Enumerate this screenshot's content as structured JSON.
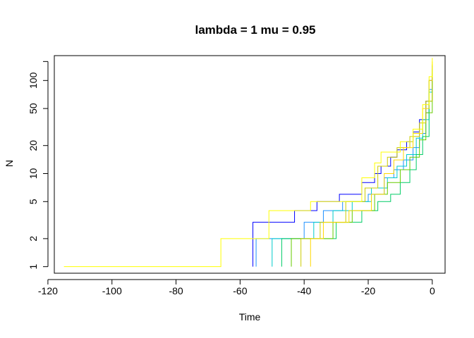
{
  "chart_data": {
    "type": "line",
    "title": "lambda = 1 mu = 0.95",
    "xlabel": "Time",
    "ylabel": "N",
    "xlim": [
      -118,
      4
    ],
    "ylim": [
      0.85,
      185
    ],
    "y_scale": "log",
    "x_ticks": [
      -120,
      -100,
      -80,
      -60,
      -40,
      -20,
      0
    ],
    "x_tick_labels": [
      "-120",
      "-100",
      "-80",
      "-60",
      "-40",
      "-20",
      "0"
    ],
    "y_ticks": [
      1,
      2,
      5,
      10,
      20,
      50,
      100,
      160
    ],
    "y_tick_labels": [
      "1",
      "2",
      "5",
      "10",
      "20",
      "50",
      "100",
      ""
    ],
    "grid": false,
    "legend": "none",
    "series": [
      {
        "color": "#0000ff",
        "points": [
          [
            -56,
            1
          ],
          [
            -56,
            3
          ],
          [
            -43,
            3
          ],
          [
            -43,
            4
          ],
          [
            -36,
            4
          ],
          [
            -36,
            5
          ],
          [
            -29,
            5
          ],
          [
            -29,
            6
          ],
          [
            -22,
            6
          ],
          [
            -22,
            8
          ],
          [
            -18,
            8
          ],
          [
            -18,
            10
          ],
          [
            -16,
            10
          ],
          [
            -16,
            12
          ],
          [
            -13,
            12
          ],
          [
            -13,
            15
          ],
          [
            -11,
            15
          ],
          [
            -11,
            18
          ],
          [
            -8,
            18
          ],
          [
            -8,
            22
          ],
          [
            -6,
            22
          ],
          [
            -6,
            28
          ],
          [
            -4,
            28
          ],
          [
            -4,
            38
          ],
          [
            -2,
            38
          ],
          [
            -2,
            60
          ],
          [
            -1,
            60
          ],
          [
            -1,
            100
          ],
          [
            0,
            100
          ],
          [
            0,
            145
          ]
        ]
      },
      {
        "color": "#1e90ff",
        "points": [
          [
            -55,
            1
          ],
          [
            -55,
            2
          ],
          [
            -40,
            2
          ],
          [
            -40,
            3
          ],
          [
            -34,
            3
          ],
          [
            -34,
            4
          ],
          [
            -28,
            4
          ],
          [
            -28,
            5
          ],
          [
            -20,
            5
          ],
          [
            -20,
            6
          ],
          [
            -15,
            6
          ],
          [
            -15,
            9
          ],
          [
            -12,
            9
          ],
          [
            -12,
            11
          ],
          [
            -9,
            11
          ],
          [
            -9,
            14
          ],
          [
            -6,
            14
          ],
          [
            -6,
            19
          ],
          [
            -4,
            19
          ],
          [
            -4,
            27
          ],
          [
            -2,
            27
          ],
          [
            -2,
            45
          ],
          [
            -1,
            45
          ],
          [
            -1,
            80
          ],
          [
            0,
            80
          ],
          [
            0,
            135
          ]
        ]
      },
      {
        "color": "#00cccc",
        "points": [
          [
            -50,
            1
          ],
          [
            -50,
            2
          ],
          [
            -37,
            2
          ],
          [
            -37,
            3
          ],
          [
            -31,
            3
          ],
          [
            -31,
            4
          ],
          [
            -25,
            4
          ],
          [
            -25,
            5
          ],
          [
            -19,
            5
          ],
          [
            -19,
            7
          ],
          [
            -14,
            7
          ],
          [
            -14,
            9
          ],
          [
            -11,
            9
          ],
          [
            -11,
            12
          ],
          [
            -8,
            12
          ],
          [
            -8,
            16
          ],
          [
            -5,
            16
          ],
          [
            -5,
            24
          ],
          [
            -3,
            24
          ],
          [
            -3,
            38
          ],
          [
            -1,
            38
          ],
          [
            -1,
            75
          ],
          [
            0,
            75
          ],
          [
            0,
            130
          ]
        ]
      },
      {
        "color": "#00cc66",
        "points": [
          [
            -47,
            1
          ],
          [
            -47,
            2
          ],
          [
            -30,
            2
          ],
          [
            -30,
            3
          ],
          [
            -22,
            3
          ],
          [
            -22,
            4
          ],
          [
            -17,
            4
          ],
          [
            -17,
            5
          ],
          [
            -13,
            5
          ],
          [
            -13,
            6
          ],
          [
            -10,
            6
          ],
          [
            -10,
            8
          ],
          [
            -7,
            8
          ],
          [
            -7,
            11
          ],
          [
            -5,
            11
          ],
          [
            -5,
            16
          ],
          [
            -3,
            16
          ],
          [
            -3,
            25
          ],
          [
            -1,
            25
          ],
          [
            -1,
            60
          ],
          [
            0,
            60
          ],
          [
            0,
            120
          ]
        ]
      },
      {
        "color": "#66cc00",
        "points": [
          [
            -44,
            1
          ],
          [
            -44,
            2
          ],
          [
            -31,
            2
          ],
          [
            -31,
            3
          ],
          [
            -25,
            3
          ],
          [
            -25,
            4
          ],
          [
            -18,
            4
          ],
          [
            -18,
            6
          ],
          [
            -14,
            6
          ],
          [
            -14,
            8
          ],
          [
            -10,
            8
          ],
          [
            -10,
            11
          ],
          [
            -7,
            11
          ],
          [
            -7,
            15
          ],
          [
            -4,
            15
          ],
          [
            -4,
            23
          ],
          [
            -2,
            23
          ],
          [
            -2,
            45
          ],
          [
            0,
            45
          ],
          [
            0,
            130
          ]
        ]
      },
      {
        "color": "#cccc00",
        "points": [
          [
            -41,
            1
          ],
          [
            -41,
            2
          ],
          [
            -35,
            2
          ],
          [
            -35,
            3
          ],
          [
            -27,
            3
          ],
          [
            -27,
            5
          ],
          [
            -21,
            5
          ],
          [
            -21,
            7
          ],
          [
            -17,
            7
          ],
          [
            -17,
            12
          ],
          [
            -14,
            12
          ],
          [
            -14,
            15
          ],
          [
            -11,
            15
          ],
          [
            -11,
            19
          ],
          [
            -7,
            19
          ],
          [
            -7,
            25
          ],
          [
            -4,
            25
          ],
          [
            -4,
            35
          ],
          [
            -2,
            35
          ],
          [
            -2,
            60
          ],
          [
            0,
            60
          ],
          [
            0,
            150
          ]
        ]
      },
      {
        "color": "#ffd700",
        "points": [
          [
            -38,
            1
          ],
          [
            -38,
            2
          ],
          [
            -34,
            2
          ],
          [
            -34,
            3
          ],
          [
            -26,
            3
          ],
          [
            -26,
            4
          ],
          [
            -19,
            4
          ],
          [
            -19,
            6
          ],
          [
            -15,
            6
          ],
          [
            -15,
            10
          ],
          [
            -12,
            10
          ],
          [
            -12,
            14
          ],
          [
            -9,
            14
          ],
          [
            -9,
            19
          ],
          [
            -6,
            19
          ],
          [
            -6,
            27
          ],
          [
            -3,
            27
          ],
          [
            -3,
            50
          ],
          [
            -1,
            50
          ],
          [
            -1,
            100
          ],
          [
            0,
            100
          ],
          [
            0,
            160
          ]
        ]
      },
      {
        "color": "#ffff00",
        "points": [
          [
            -115,
            1
          ],
          [
            -66,
            1
          ],
          [
            -66,
            2
          ],
          [
            -51,
            2
          ],
          [
            -51,
            4
          ],
          [
            -38,
            4
          ],
          [
            -38,
            5
          ],
          [
            -22,
            5
          ],
          [
            -22,
            9
          ],
          [
            -18,
            9
          ],
          [
            -18,
            13
          ],
          [
            -16,
            13
          ],
          [
            -16,
            17
          ],
          [
            -10,
            17
          ],
          [
            -10,
            22
          ],
          [
            -6,
            22
          ],
          [
            -6,
            30
          ],
          [
            -3,
            30
          ],
          [
            -3,
            55
          ],
          [
            -1,
            55
          ],
          [
            -1,
            110
          ],
          [
            0,
            110
          ],
          [
            0,
            175
          ]
        ]
      }
    ]
  }
}
